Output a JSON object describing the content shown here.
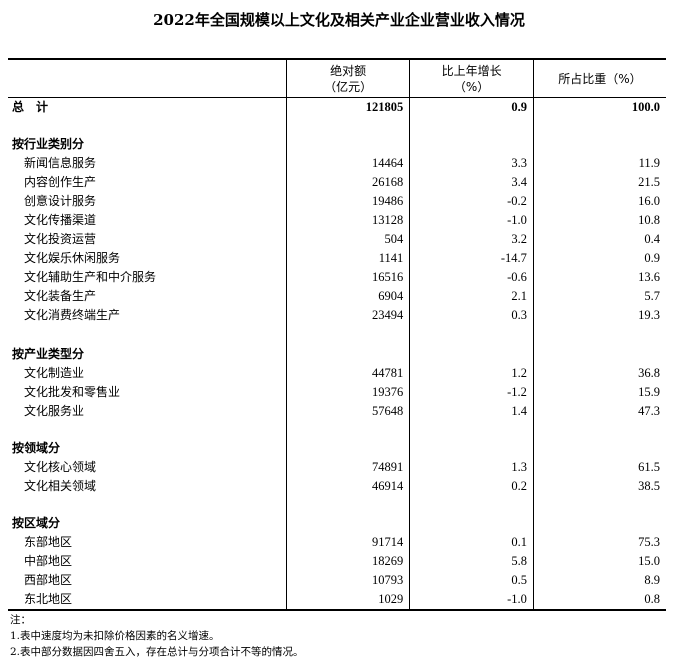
{
  "title": "2022年全国规模以上文化及相关产业企业营业收入情况",
  "headers": {
    "amount_line1": "绝对额",
    "amount_line2": "（亿元）",
    "growth_line1": "比上年增长",
    "growth_line2": "（%）",
    "share": "所占比重（%）"
  },
  "total": {
    "label": "总　计",
    "amount": "121805",
    "growth": "0.9",
    "share": "100.0"
  },
  "sections": [
    {
      "label": "按行业类别分",
      "rows": [
        {
          "label": "新闻信息服务",
          "amount": "14464",
          "growth": "3.3",
          "share": "11.9"
        },
        {
          "label": "内容创作生产",
          "amount": "26168",
          "growth": "3.4",
          "share": "21.5"
        },
        {
          "label": "创意设计服务",
          "amount": "19486",
          "growth": "-0.2",
          "share": "16.0"
        },
        {
          "label": "文化传播渠道",
          "amount": "13128",
          "growth": "-1.0",
          "share": "10.8"
        },
        {
          "label": "文化投资运营",
          "amount": "504",
          "growth": "3.2",
          "share": "0.4"
        },
        {
          "label": "文化娱乐休闲服务",
          "amount": "1141",
          "growth": "-14.7",
          "share": "0.9"
        },
        {
          "label": "文化辅助生产和中介服务",
          "amount": "16516",
          "growth": "-0.6",
          "share": "13.6"
        },
        {
          "label": "文化装备生产",
          "amount": "6904",
          "growth": "2.1",
          "share": "5.7"
        },
        {
          "label": "文化消费终端生产",
          "amount": "23494",
          "growth": "0.3",
          "share": "19.3"
        }
      ]
    },
    {
      "label": "按产业类型分",
      "rows": [
        {
          "label": "文化制造业",
          "amount": "44781",
          "growth": "1.2",
          "share": "36.8"
        },
        {
          "label": "文化批发和零售业",
          "amount": "19376",
          "growth": "-1.2",
          "share": "15.9"
        },
        {
          "label": "文化服务业",
          "amount": "57648",
          "growth": "1.4",
          "share": "47.3"
        }
      ]
    },
    {
      "label": "按领域分",
      "rows": [
        {
          "label": "文化核心领域",
          "amount": "74891",
          "growth": "1.3",
          "share": "61.5"
        },
        {
          "label": "文化相关领域",
          "amount": "46914",
          "growth": "0.2",
          "share": "38.5"
        }
      ]
    },
    {
      "label": "按区域分",
      "rows": [
        {
          "label": "东部地区",
          "amount": "91714",
          "growth": "0.1",
          "share": "75.3"
        },
        {
          "label": "中部地区",
          "amount": "18269",
          "growth": "5.8",
          "share": "15.0"
        },
        {
          "label": "西部地区",
          "amount": "10793",
          "growth": "0.5",
          "share": "8.9"
        },
        {
          "label": "东北地区",
          "amount": "1029",
          "growth": "-1.0",
          "share": "0.8"
        }
      ]
    }
  ],
  "notes": [
    "注：",
    "1.表中速度均为未扣除价格因素的名义增速。",
    "2.表中部分数据因四舍五入，存在总计与分项合计不等的情况。"
  ]
}
